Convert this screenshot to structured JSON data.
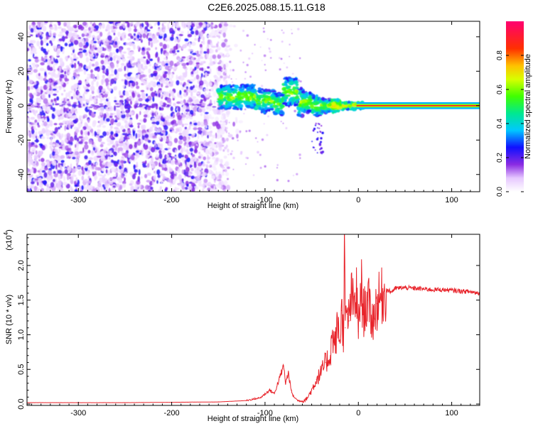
{
  "title": "C2E6.2025.088.15.11.G18",
  "chart_data": [
    {
      "type": "heatmap",
      "xlabel": "Height of straight line (km)",
      "ylabel": "Frequency (Hz)",
      "xlim": [
        -355,
        130
      ],
      "ylim": [
        -50,
        49
      ],
      "x_ticks": [
        -300,
        -200,
        -100,
        0,
        100
      ],
      "y_ticks": [
        -40,
        -20,
        0,
        20,
        40
      ],
      "colorbar": {
        "label": "Normalized spectral amplitude",
        "range": [
          0,
          1
        ],
        "ticks": [
          0.0,
          0.2,
          0.4,
          0.6,
          0.8
        ],
        "tick_labels": [
          "0.0",
          "0.2",
          "0.4",
          "0.6",
          "0.8"
        ]
      },
      "regions": [
        {
          "x_range": [
            -355,
            -140
          ],
          "freq_range": [
            -50,
            49
          ],
          "amplitude": "low (0.05-0.25), scattered noise"
        },
        {
          "x_range": [
            -150,
            5
          ],
          "freq_range": [
            -8,
            10
          ],
          "amplitude": "medium (0.2-0.6), broadened carrier"
        },
        {
          "x_range": [
            0,
            130
          ],
          "freq_range": [
            -1,
            1
          ],
          "amplitude": "high (~1.0), carrier line"
        }
      ]
    },
    {
      "type": "line",
      "xlabel": "Height of straight line (km)",
      "ylabel": "SNR (10 * v/v)",
      "y_scale_label": "(x10",
      "y_scale_exponent": "4",
      "xlim": [
        -355,
        130
      ],
      "ylim": [
        -0.02,
        2.45
      ],
      "x_ticks": [
        -300,
        -200,
        -100,
        0,
        100
      ],
      "y_ticks": [
        0.0,
        0.5,
        1.0,
        1.5,
        2.0
      ],
      "y_tick_labels": [
        "0.0",
        "0.5",
        "1.0",
        "1.5",
        "2.0"
      ],
      "series": [
        {
          "color": "#e8232a",
          "x": [
            -355,
            -250,
            -150,
            -120,
            -105,
            -95,
            -90,
            -85,
            -80,
            -78,
            -75,
            -72,
            -70,
            -65,
            -60,
            -55,
            -50,
            -45,
            -40,
            -35,
            -30,
            -28,
            -25,
            -22,
            -20,
            -18,
            -16,
            -15,
            -14,
            -12,
            -10,
            -8,
            -5,
            -2,
            0,
            3,
            5,
            10,
            15,
            20,
            25,
            30,
            35,
            40,
            50,
            60,
            70,
            80,
            90,
            100,
            110,
            120,
            130
          ],
          "y": [
            0.02,
            0.02,
            0.03,
            0.05,
            0.09,
            0.2,
            0.15,
            0.35,
            0.55,
            0.3,
            0.45,
            0.2,
            0.12,
            0.05,
            0.04,
            0.08,
            0.2,
            0.35,
            0.45,
            0.6,
            0.7,
            1.0,
            0.85,
            1.15,
            0.9,
            1.35,
            1.0,
            2.45,
            1.1,
            1.3,
            1.2,
            1.55,
            1.4,
            1.6,
            1.05,
            1.75,
            1.3,
            1.5,
            1.2,
            1.45,
            1.55,
            1.65,
            1.62,
            1.67,
            1.68,
            1.67,
            1.66,
            1.65,
            1.65,
            1.64,
            1.63,
            1.62,
            1.6
          ]
        }
      ]
    }
  ]
}
